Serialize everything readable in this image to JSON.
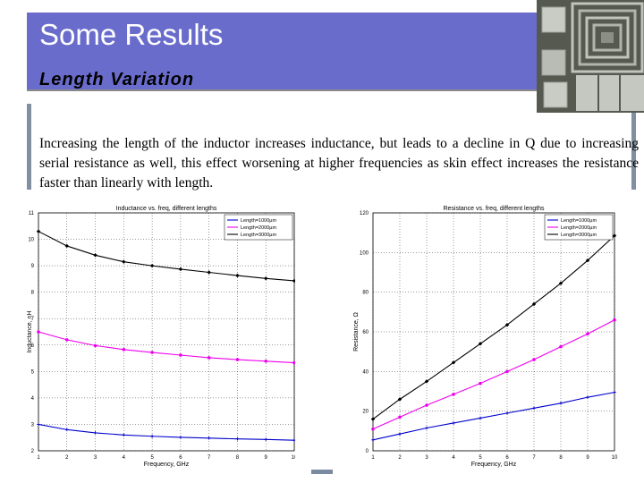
{
  "slide": {
    "title": "Some Results",
    "subtitle": "Length Variation",
    "body": "Increasing the length of the inductor increases inductance, but leads to a decline in Q due to increasing serial resistance as well, this effect worsening at higher frequencies as skin effect increases the resistance faster than linearly with length."
  },
  "colors": {
    "banner": "#6a6ccc",
    "series_blue": "#0000cc",
    "series_magenta": "#ee00ee",
    "series_black": "#000000"
  },
  "chart_data": [
    {
      "type": "line",
      "title": "Inductance vs. freq, different lengths",
      "xlabel": "Frequency, GHz",
      "ylabel": "Inductance, nH",
      "xlim": [
        1,
        10
      ],
      "ylim": [
        2,
        11
      ],
      "xticks": [
        1,
        2,
        3,
        4,
        5,
        6,
        7,
        8,
        9,
        10
      ],
      "yticks": [
        2,
        3,
        4,
        5,
        6,
        7,
        8,
        9,
        10,
        11
      ],
      "grid": true,
      "legend_position": "top-right",
      "x": [
        1,
        2,
        3,
        4,
        5,
        6,
        7,
        8,
        9,
        10
      ],
      "series": [
        {
          "name": "Length=1000µm",
          "color": "#0000cc",
          "values": [
            3.0,
            2.8,
            2.68,
            2.6,
            2.55,
            2.51,
            2.48,
            2.45,
            2.43,
            2.4
          ]
        },
        {
          "name": "Length=2000µm",
          "color": "#ee00ee",
          "values": [
            6.5,
            6.2,
            5.98,
            5.83,
            5.72,
            5.62,
            5.52,
            5.45,
            5.39,
            5.33
          ]
        },
        {
          "name": "Length=3000µm",
          "color": "#000000",
          "values": [
            10.3,
            9.75,
            9.4,
            9.15,
            9.0,
            8.87,
            8.75,
            8.63,
            8.52,
            8.43
          ]
        }
      ]
    },
    {
      "type": "line",
      "title": "Resistance vs. freq, different lengths",
      "xlabel": "Frequency, GHz",
      "ylabel": "Resistance, Ω",
      "xlim": [
        1,
        10
      ],
      "ylim": [
        0,
        120
      ],
      "xticks": [
        1,
        2,
        3,
        4,
        5,
        6,
        7,
        8,
        9,
        10
      ],
      "yticks": [
        0,
        20,
        40,
        60,
        80,
        100,
        120
      ],
      "grid": true,
      "legend_position": "top-right",
      "x": [
        1,
        2,
        3,
        4,
        5,
        6,
        7,
        8,
        9,
        10
      ],
      "series": [
        {
          "name": "Length=1000µm",
          "color": "#0000cc",
          "values": [
            5.5,
            8.5,
            11.5,
            14,
            16.5,
            19,
            21.5,
            24,
            27,
            29.5
          ]
        },
        {
          "name": "Length=2000µm",
          "color": "#ee00ee",
          "values": [
            11,
            17,
            23,
            28.5,
            34,
            40,
            46,
            52.5,
            59,
            66
          ]
        },
        {
          "name": "Length=3000µm",
          "color": "#000000",
          "values": [
            16,
            26,
            35,
            44.5,
            54,
            63.5,
            74,
            84.5,
            96,
            108.5
          ]
        }
      ]
    }
  ]
}
